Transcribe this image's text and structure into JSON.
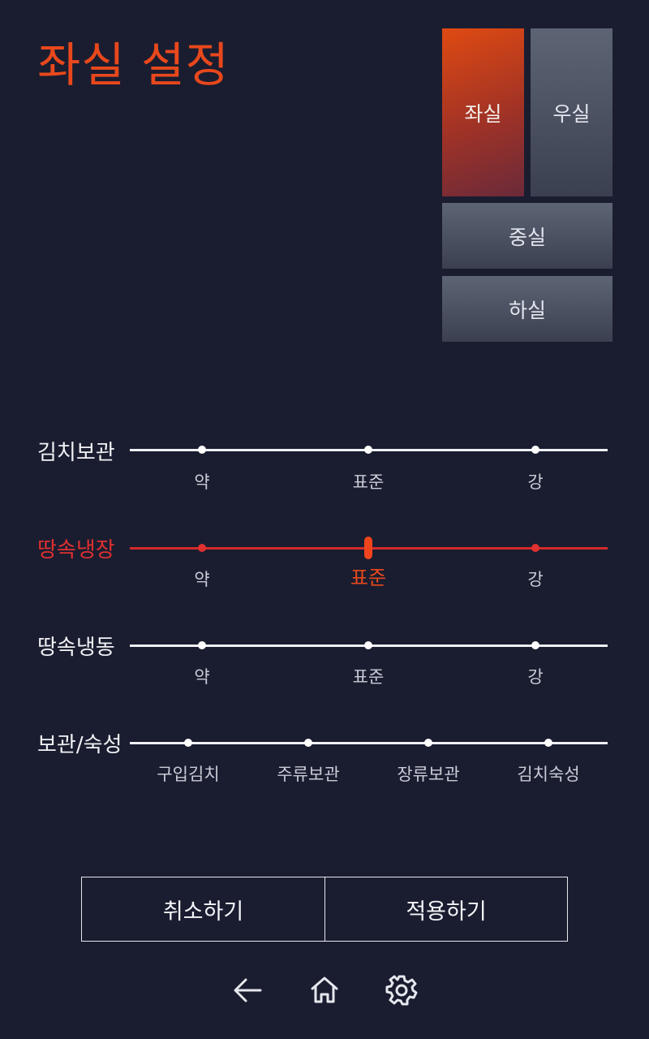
{
  "title": "좌실 설정",
  "compartments": {
    "left": "좌실",
    "right": "우실",
    "middle": "중실",
    "bottom": "하실",
    "selected": "좌실"
  },
  "sliders": [
    {
      "label": "김치보관",
      "ticks": [
        "약",
        "표준",
        "강"
      ],
      "active": false
    },
    {
      "label": "땅속냉장",
      "ticks": [
        "약",
        "표준",
        "강"
      ],
      "active": true,
      "selected": "표준"
    },
    {
      "label": "땅속냉동",
      "ticks": [
        "약",
        "표준",
        "강"
      ],
      "active": false
    },
    {
      "label": "보관/숙성",
      "ticks": [
        "구입김치",
        "주류보관",
        "장류보관",
        "김치숙성"
      ],
      "active": false
    }
  ],
  "buttons": {
    "cancel": "취소하기",
    "apply": "적용하기"
  },
  "nav": {
    "icons": [
      "back-arrow-icon",
      "home-icon",
      "gear-icon"
    ]
  },
  "colors": {
    "background": "#1a1d30",
    "accent": "#e8481c",
    "active_track": "#d42a2a",
    "compartment": "#4a5060"
  }
}
